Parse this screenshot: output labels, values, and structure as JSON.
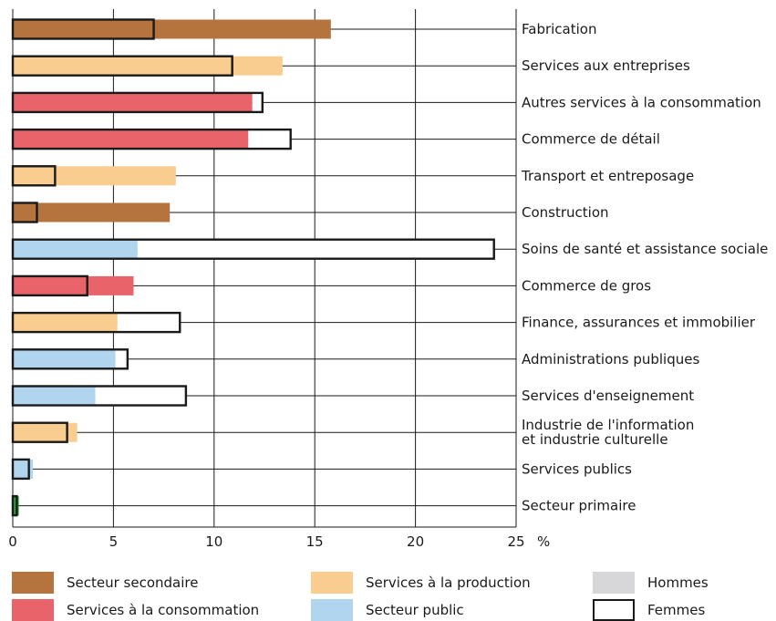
{
  "chart_data": {
    "type": "bar",
    "orientation": "horizontal",
    "unit": "%",
    "xlim": [
      0,
      25
    ],
    "ticks": [
      "0",
      "5",
      "10",
      "15",
      "20",
      "25"
    ],
    "grid": true,
    "categories": [
      "Fabrication",
      "Services aux entreprises",
      "Autres services à la consommation",
      "Commerce de détail",
      "Transport et entreposage",
      "Construction",
      "Soins de santé et assistance sociale",
      "Commerce de gros",
      "Finance, assurances et immobilier",
      "Administrations publiques",
      "Services d'enseignement",
      "Industrie de l'information et industrie culturelle",
      "Services publics",
      "Secteur primaire"
    ],
    "sector": [
      "secondaire",
      "production",
      "consommation",
      "consommation",
      "production",
      "secondaire",
      "public",
      "consommation",
      "production",
      "public",
      "public",
      "production",
      "public",
      "primaire"
    ],
    "series": [
      {
        "name": "Hommes",
        "values": [
          15.8,
          13.4,
          11.9,
          11.7,
          8.1,
          7.8,
          6.2,
          6.0,
          5.2,
          5.1,
          4.1,
          3.2,
          1.0,
          0.3
        ]
      },
      {
        "name": "Femmes",
        "values": [
          7.0,
          10.9,
          12.4,
          13.8,
          2.1,
          1.2,
          23.9,
          3.7,
          8.3,
          5.7,
          8.6,
          2.7,
          0.8,
          0.2
        ]
      }
    ],
    "sector_colors": {
      "secondaire": "#b5743e",
      "production": "#f9cc8f",
      "consommation": "#e8636a",
      "public": "#b2d5ef",
      "primaire": "#27a53a"
    },
    "legend_position": "bottom"
  },
  "legend": {
    "items": [
      {
        "label": "Secteur secondaire",
        "color": "#b5743e",
        "style": "fill"
      },
      {
        "label": "Services à la production",
        "color": "#f9cc8f",
        "style": "fill"
      },
      {
        "label": "Hommes",
        "color": "#d7d7d9",
        "style": "fill"
      },
      {
        "label": "Services à la consommation",
        "color": "#e8636a",
        "style": "fill"
      },
      {
        "label": "Secteur public",
        "color": "#b2d5ef",
        "style": "fill"
      },
      {
        "label": "Femmes",
        "color": "#ffffff",
        "style": "outline"
      }
    ]
  }
}
